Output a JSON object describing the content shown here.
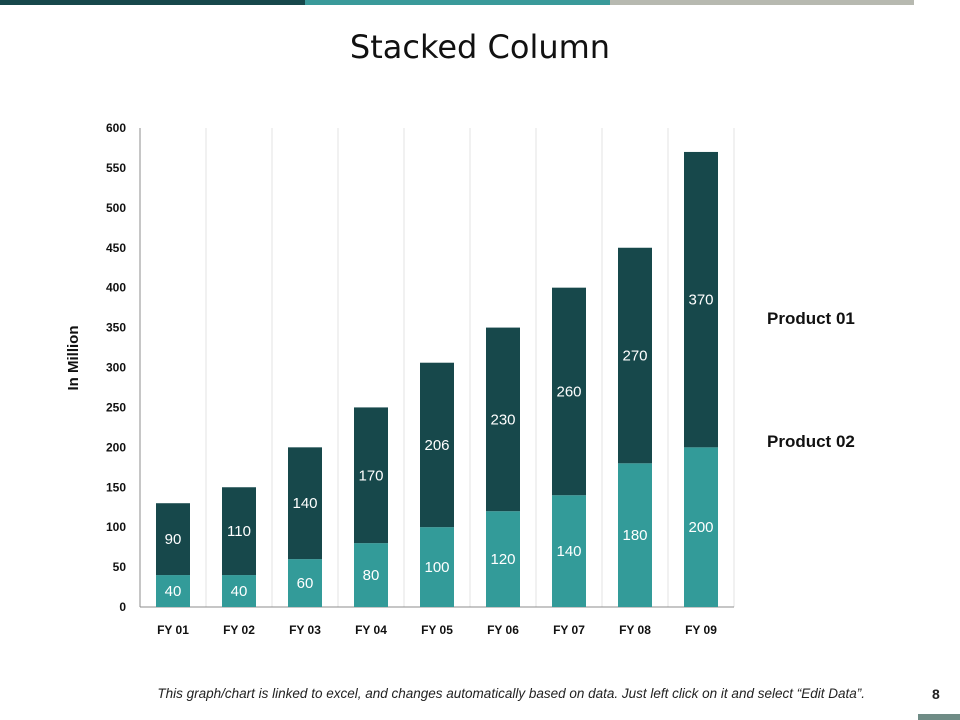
{
  "colors": {
    "top_bar": [
      "#17484b",
      "#3a9a9a",
      "#b7b9b0"
    ],
    "product_01": "#17484b",
    "product_02": "#339b99",
    "grid": "#e3e3e3",
    "corner_bar": "#6f8c86"
  },
  "chart_data": {
    "type": "bar",
    "stacked": true,
    "title": "Stacked Column",
    "xlabel": "",
    "ylabel": "In Million",
    "categories": [
      "FY 01",
      "FY 02",
      "FY 03",
      "FY 04",
      "FY 05",
      "FY 06",
      "FY 07",
      "FY 08",
      "FY 09"
    ],
    "series": [
      {
        "name": "Product 02",
        "values": [
          40,
          40,
          60,
          80,
          100,
          120,
          140,
          180,
          200
        ]
      },
      {
        "name": "Product 01",
        "values": [
          90,
          110,
          140,
          170,
          206,
          230,
          260,
          270,
          370
        ]
      }
    ],
    "ylim": [
      0,
      600
    ],
    "yticks": [
      0,
      50,
      100,
      150,
      200,
      250,
      300,
      350,
      400,
      450,
      500,
      550,
      600
    ],
    "grid": "vertical",
    "legend_position": "right"
  },
  "footer": {
    "note": "This graph/chart is linked to excel, and changes automatically based on data. Just left click on it and select “Edit Data”.",
    "page_number": "8"
  }
}
